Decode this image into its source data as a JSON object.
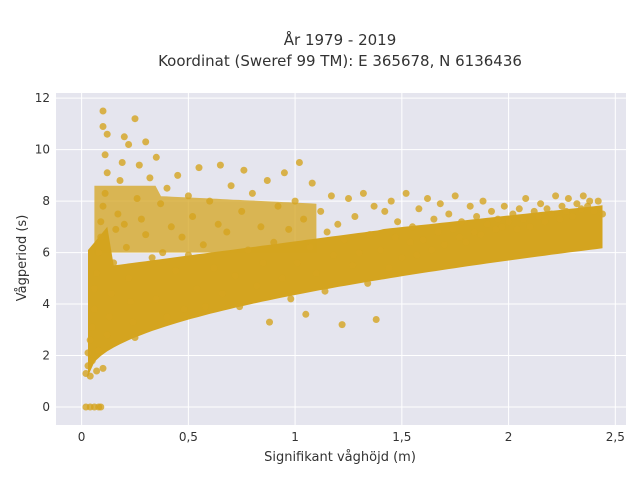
{
  "chart_data": {
    "type": "scatter",
    "title_line1": "År 1979 - 2019",
    "title_line2": "Koordinat (Sweref 99 TM): E 365678, N 6136436",
    "xlabel": "Signifikant våghöjd (m)",
    "ylabel": "Vågperiod (s)",
    "xlim": [
      -0.12,
      2.55
    ],
    "ylim": [
      -0.7,
      12.2
    ],
    "xticks": [
      0,
      0.5,
      1,
      1.5,
      2,
      2.5
    ],
    "xtick_labels": [
      "0",
      "0,5",
      "1",
      "1,5",
      "2",
      "2,5"
    ],
    "yticks": [
      0,
      2,
      4,
      6,
      8,
      10,
      12
    ],
    "ytick_labels": [
      "0",
      "2",
      "4",
      "6",
      "8",
      "10",
      "12"
    ],
    "grid": true,
    "marker_color": "#D4A41F",
    "plot_background": "#E5E5EE",
    "points": [
      [
        0.02,
        0.0
      ],
      [
        0.04,
        0.0
      ],
      [
        0.06,
        0.0
      ],
      [
        0.08,
        0.0
      ],
      [
        0.09,
        0.0
      ],
      [
        0.02,
        1.3
      ],
      [
        0.03,
        1.6
      ],
      [
        0.03,
        2.1
      ],
      [
        0.04,
        1.2
      ],
      [
        0.04,
        2.6
      ],
      [
        0.05,
        3.1
      ],
      [
        0.05,
        1.8
      ],
      [
        0.06,
        3.8
      ],
      [
        0.06,
        4.6
      ],
      [
        0.07,
        1.4
      ],
      [
        0.07,
        5.2
      ],
      [
        0.08,
        2.2
      ],
      [
        0.08,
        6.0
      ],
      [
        0.09,
        6.6
      ],
      [
        0.09,
        7.2
      ],
      [
        0.1,
        7.8
      ],
      [
        0.1,
        1.5
      ],
      [
        0.11,
        8.3
      ],
      [
        0.12,
        9.1
      ],
      [
        0.1,
        10.9
      ],
      [
        0.1,
        11.5
      ],
      [
        0.12,
        10.6
      ],
      [
        0.11,
        9.8
      ],
      [
        0.12,
        2.8
      ],
      [
        0.13,
        3.5
      ],
      [
        0.14,
        4.4
      ],
      [
        0.15,
        5.6
      ],
      [
        0.16,
        6.9
      ],
      [
        0.17,
        7.5
      ],
      [
        0.18,
        8.8
      ],
      [
        0.19,
        9.5
      ],
      [
        0.2,
        7.1
      ],
      [
        0.21,
        6.2
      ],
      [
        0.22,
        5.0
      ],
      [
        0.23,
        4.1
      ],
      [
        0.24,
        3.3
      ],
      [
        0.25,
        2.7
      ],
      [
        0.22,
        10.2
      ],
      [
        0.25,
        11.2
      ],
      [
        0.2,
        10.5
      ],
      [
        0.26,
        8.1
      ],
      [
        0.27,
        9.4
      ],
      [
        0.28,
        7.3
      ],
      [
        0.3,
        6.7
      ],
      [
        0.3,
        10.3
      ],
      [
        0.32,
        8.9
      ],
      [
        0.33,
        5.8
      ],
      [
        0.35,
        4.2
      ],
      [
        0.35,
        9.7
      ],
      [
        0.37,
        7.9
      ],
      [
        0.38,
        6.0
      ],
      [
        0.4,
        3.5
      ],
      [
        0.4,
        8.5
      ],
      [
        0.42,
        7.0
      ],
      [
        0.44,
        5.3
      ],
      [
        0.45,
        9.0
      ],
      [
        0.47,
        6.6
      ],
      [
        0.48,
        3.8
      ],
      [
        0.5,
        8.2
      ],
      [
        0.5,
        5.9
      ],
      [
        0.52,
        7.4
      ],
      [
        0.54,
        4.6
      ],
      [
        0.55,
        9.3
      ],
      [
        0.57,
        6.3
      ],
      [
        0.58,
        3.9
      ],
      [
        0.6,
        8.0
      ],
      [
        0.62,
        5.4
      ],
      [
        0.64,
        7.1
      ],
      [
        0.65,
        9.4
      ],
      [
        0.66,
        4.4
      ],
      [
        0.68,
        6.8
      ],
      [
        0.7,
        8.6
      ],
      [
        0.72,
        5.1
      ],
      [
        0.74,
        3.9
      ],
      [
        0.75,
        7.6
      ],
      [
        0.76,
        9.2
      ],
      [
        0.78,
        6.1
      ],
      [
        0.8,
        8.3
      ],
      [
        0.82,
        4.7
      ],
      [
        0.84,
        7.0
      ],
      [
        0.85,
        5.6
      ],
      [
        0.87,
        8.8
      ],
      [
        0.88,
        3.3
      ],
      [
        0.9,
        6.4
      ],
      [
        0.92,
        7.8
      ],
      [
        0.94,
        5.0
      ],
      [
        0.95,
        9.1
      ],
      [
        0.97,
        6.9
      ],
      [
        0.98,
        4.2
      ],
      [
        1.0,
        8.0
      ],
      [
        1.01,
        5.6
      ],
      [
        1.02,
        9.5
      ],
      [
        1.04,
        7.3
      ],
      [
        1.05,
        3.6
      ],
      [
        1.07,
        6.2
      ],
      [
        1.08,
        8.7
      ],
      [
        1.1,
        5.2
      ],
      [
        1.12,
        7.6
      ],
      [
        1.14,
        4.5
      ],
      [
        1.15,
        6.8
      ],
      [
        1.17,
        8.2
      ],
      [
        1.18,
        5.9
      ],
      [
        1.2,
        7.1
      ],
      [
        1.22,
        3.2
      ],
      [
        1.23,
        6.5
      ],
      [
        1.25,
        8.1
      ],
      [
        1.27,
        5.5
      ],
      [
        1.28,
        7.4
      ],
      [
        1.3,
        6.0
      ],
      [
        1.32,
        8.3
      ],
      [
        1.34,
        4.8
      ],
      [
        1.35,
        6.7
      ],
      [
        1.37,
        7.8
      ],
      [
        1.38,
        3.4
      ],
      [
        1.4,
        6.1
      ],
      [
        1.42,
        7.6
      ],
      [
        1.44,
        5.4
      ],
      [
        1.45,
        8.0
      ],
      [
        1.47,
        6.6
      ],
      [
        1.48,
        7.2
      ],
      [
        1.5,
        5.8
      ],
      [
        1.52,
        8.3
      ],
      [
        1.54,
        6.4
      ],
      [
        1.55,
        7.0
      ],
      [
        1.57,
        5.9
      ],
      [
        1.58,
        7.7
      ],
      [
        1.6,
        6.5
      ],
      [
        1.62,
        8.1
      ],
      [
        1.64,
        6.1
      ],
      [
        1.65,
        7.3
      ],
      [
        1.67,
        6.8
      ],
      [
        1.68,
        7.9
      ],
      [
        1.7,
        6.3
      ],
      [
        1.72,
        7.5
      ],
      [
        1.74,
        6.9
      ],
      [
        1.75,
        8.2
      ],
      [
        1.77,
        6.6
      ],
      [
        1.78,
        7.2
      ],
      [
        1.8,
        6.4
      ],
      [
        1.82,
        7.8
      ],
      [
        1.84,
        6.8
      ],
      [
        1.85,
        7.4
      ],
      [
        1.87,
        6.7
      ],
      [
        1.88,
        8.0
      ],
      [
        1.9,
        7.1
      ],
      [
        1.92,
        7.6
      ],
      [
        1.94,
        6.9
      ],
      [
        1.95,
        7.3
      ],
      [
        1.97,
        7.0
      ],
      [
        1.98,
        7.8
      ],
      [
        2.0,
        7.2
      ],
      [
        2.02,
        7.5
      ],
      [
        2.04,
        6.9
      ],
      [
        2.05,
        7.7
      ],
      [
        2.07,
        7.3
      ],
      [
        2.08,
        8.1
      ],
      [
        2.1,
        7.0
      ],
      [
        2.12,
        7.6
      ],
      [
        2.14,
        7.4
      ],
      [
        2.15,
        7.9
      ],
      [
        2.17,
        7.2
      ],
      [
        2.18,
        7.7
      ],
      [
        2.2,
        7.5
      ],
      [
        2.22,
        8.2
      ],
      [
        2.24,
        7.3
      ],
      [
        2.25,
        7.8
      ],
      [
        2.27,
        7.6
      ],
      [
        2.28,
        8.1
      ],
      [
        2.3,
        7.4
      ],
      [
        2.32,
        7.9
      ],
      [
        2.34,
        7.7
      ],
      [
        2.35,
        8.2
      ],
      [
        2.37,
        7.8
      ],
      [
        2.38,
        8.0
      ],
      [
        2.4,
        7.6
      ],
      [
        2.42,
        8.0
      ],
      [
        2.44,
        7.5
      ]
    ]
  }
}
